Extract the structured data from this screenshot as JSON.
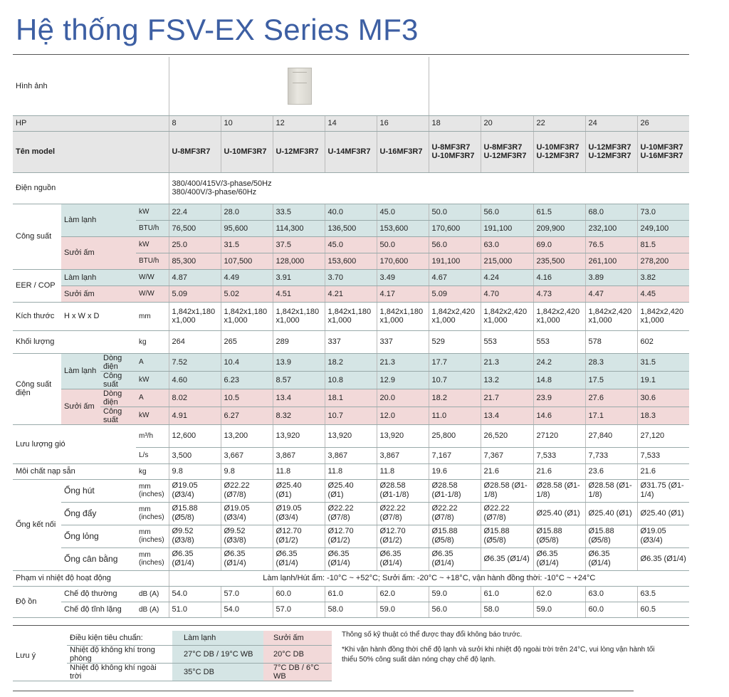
{
  "title": "Hệ thống FSV-EX Series MF3",
  "labels": {
    "image": "Hình ảnh",
    "hp": "HP",
    "model": "Tên model",
    "power_source": "Điện nguồn",
    "capacity": "Công suất",
    "cooling": "Làm lạnh",
    "heating": "Sưởi ấm",
    "eer_cop": "EER / COP",
    "dimensions": "Kích thước",
    "hwd": "H x W x D",
    "weight": "Khối lượng",
    "elec_power": "Công suất điện",
    "current": "Dòng điện",
    "power": "Công suất",
    "airflow": "Lưu lượng gió",
    "refrigerant": "Môi chất nạp sẵn",
    "piping": "Ống kết nối",
    "suction": "Ống hút",
    "discharge": "Ống đẩy",
    "liquid": "Ống lỏng",
    "balance": "Ống cân bằng",
    "temp_range": "Phạm vi nhiệt độ hoạt động",
    "noise": "Độ ồn",
    "normal_mode": "Chế độ thường",
    "quiet_mode": "Chế độ tĩnh lặng"
  },
  "units": {
    "kw": "kW",
    "btuh": "BTU/h",
    "ww": "W/W",
    "mm": "mm",
    "kg": "kg",
    "a": "A",
    "m3h": "m³/h",
    "ls": "L/s",
    "mm_inches": "mm (inches)",
    "dba": "dB (A)"
  },
  "hp": [
    "8",
    "10",
    "12",
    "14",
    "16",
    "18",
    "20",
    "22",
    "24",
    "26"
  ],
  "models": [
    [
      "U-8MF3R7"
    ],
    [
      "U-10MF3R7"
    ],
    [
      "U-12MF3R7"
    ],
    [
      "U-14MF3R7"
    ],
    [
      "U-16MF3R7"
    ],
    [
      "U-8MF3R7",
      "U-10MF3R7"
    ],
    [
      "U-8MF3R7",
      "U-12MF3R7"
    ],
    [
      "U-10MF3R7",
      "U-12MF3R7"
    ],
    [
      "U-12MF3R7",
      "U-12MF3R7"
    ],
    [
      "U-10MF3R7",
      "U-16MF3R7"
    ]
  ],
  "power_source": [
    "380/400/415V/3-phase/50Hz",
    "380/400V/3-phase/60Hz"
  ],
  "cool_kw": [
    "22.4",
    "28.0",
    "33.5",
    "40.0",
    "45.0",
    "50.0",
    "56.0",
    "61.5",
    "68.0",
    "73.0"
  ],
  "cool_btu": [
    "76,500",
    "95,600",
    "114,300",
    "136,500",
    "153,600",
    "170,600",
    "191,100",
    "209,900",
    "232,100",
    "249,100"
  ],
  "heat_kw": [
    "25.0",
    "31.5",
    "37.5",
    "45.0",
    "50.0",
    "56.0",
    "63.0",
    "69.0",
    "76.5",
    "81.5"
  ],
  "heat_btu": [
    "85,300",
    "107,500",
    "128,000",
    "153,600",
    "170,600",
    "191,100",
    "215,000",
    "235,500",
    "261,100",
    "278,200"
  ],
  "eer": [
    "4.87",
    "4.49",
    "3.91",
    "3.70",
    "3.49",
    "4.67",
    "4.24",
    "4.16",
    "3.89",
    "3.82"
  ],
  "cop": [
    "5.09",
    "5.02",
    "4.51",
    "4.21",
    "4.17",
    "5.09",
    "4.70",
    "4.73",
    "4.47",
    "4.45"
  ],
  "dims": [
    [
      "1,842x1,180",
      "x1,000"
    ],
    [
      "1,842x1,180",
      "x1,000"
    ],
    [
      "1,842x1,180",
      "x1,000"
    ],
    [
      "1,842x1,180",
      "x1,000"
    ],
    [
      "1,842x1,180",
      "x1,000"
    ],
    [
      "1,842x2,420",
      "x1,000"
    ],
    [
      "1,842x2,420",
      "x1,000"
    ],
    [
      "1,842x2,420",
      "x1,000"
    ],
    [
      "1,842x2,420",
      "x1,000"
    ],
    [
      "1,842x2,420",
      "x1,000"
    ]
  ],
  "weight": [
    "264",
    "265",
    "289",
    "337",
    "337",
    "529",
    "553",
    "553",
    "578",
    "602"
  ],
  "cool_current": [
    "7.52",
    "10.4",
    "13.9",
    "18.2",
    "21.3",
    "17.7",
    "21.3",
    "24.2",
    "28.3",
    "31.5"
  ],
  "cool_power": [
    "4.60",
    "6.23",
    "8.57",
    "10.8",
    "12.9",
    "10.7",
    "13.2",
    "14.8",
    "17.5",
    "19.1"
  ],
  "heat_current": [
    "8.02",
    "10.5",
    "13.4",
    "18.1",
    "20.0",
    "18.2",
    "21.7",
    "23.9",
    "27.6",
    "30.6"
  ],
  "heat_power": [
    "4.91",
    "6.27",
    "8.32",
    "10.7",
    "12.0",
    "11.0",
    "13.4",
    "14.6",
    "17.1",
    "18.3"
  ],
  "air_m3h": [
    "12,600",
    "13,200",
    "13,920",
    "13,920",
    "13,920",
    "25,800",
    "26,520",
    "27120",
    "27,840",
    "27,120"
  ],
  "air_ls": [
    "3,500",
    "3,667",
    "3,867",
    "3,867",
    "3,867",
    "7,167",
    "7,367",
    "7,533",
    "7,733",
    "7,533"
  ],
  "refrig": [
    "9.8",
    "9.8",
    "11.8",
    "11.8",
    "11.8",
    "19.6",
    "21.6",
    "21.6",
    "23.6",
    "21.6"
  ],
  "pipe_suction": [
    [
      "Ø19.05",
      "(Ø3/4)"
    ],
    [
      "Ø22.22",
      "(Ø7/8)"
    ],
    [
      "Ø25.40",
      "(Ø1)"
    ],
    [
      "Ø25.40",
      "(Ø1)"
    ],
    [
      "Ø28.58",
      "(Ø1-1/8)"
    ],
    [
      "Ø28.58",
      "(Ø1-1/8)"
    ],
    [
      "Ø28.58 (Ø1-",
      "1/8)"
    ],
    [
      "Ø28.58 (Ø1-",
      "1/8)"
    ],
    [
      "Ø28.58 (Ø1-",
      "1/8)"
    ],
    [
      "Ø31.75 (Ø1-",
      "1/4)"
    ]
  ],
  "pipe_discharge": [
    "Ø15.88 (Ø5/8)",
    "Ø19.05 (Ø3/4)",
    "Ø19.05 (Ø3/4)",
    "Ø22.22 (Ø7/8)",
    "Ø22.22 (Ø7/8)",
    "Ø22.22 (Ø7/8)",
    "Ø22.22 (Ø7/8)",
    "Ø25.40 (Ø1)",
    "Ø25.40 (Ø1)",
    "Ø25.40 (Ø1)"
  ],
  "pipe_liquid": [
    "Ø9.52 (Ø3/8)",
    "Ø9.52 (Ø3/8)",
    "Ø12.70 (Ø1/2)",
    "Ø12.70 (Ø1/2)",
    "Ø12.70 (Ø1/2)",
    "Ø15.88 (Ø5/8)",
    "Ø15.88 (Ø5/8)",
    "Ø15.88 (Ø5/8)",
    "Ø15.88 (Ø5/8)",
    "Ø19.05 (Ø3/4)"
  ],
  "pipe_balance": [
    "Ø6.35 (Ø1/4)",
    "Ø6.35 (Ø1/4)",
    "Ø6.35 (Ø1/4)",
    "Ø6.35 (Ø1/4)",
    "Ø6.35 (Ø1/4)",
    "Ø6.35 (Ø1/4)",
    "Ø6.35 (Ø1/4)",
    "Ø6.35 (Ø1/4)",
    "Ø6.35 (Ø1/4)",
    "Ø6.35 (Ø1/4)"
  ],
  "temp_range_text": "Làm lạnh/Hút ẩm: -10°C ~ +52°C; Sưởi ấm: -20°C ~ +18°C, vận hành đồng thời: -10°C ~ +24°C",
  "noise_normal": [
    "54.0",
    "57.0",
    "60.0",
    "61.0",
    "62.0",
    "59.0",
    "61.0",
    "62.0",
    "63.0",
    "63.5"
  ],
  "noise_quiet": [
    "51.0",
    "54.0",
    "57.0",
    "58.0",
    "59.0",
    "56.0",
    "58.0",
    "59.0",
    "60.0",
    "60.5"
  ],
  "notes": {
    "label": "Lưu ý",
    "std_cond": "Điều kiện tiêu chuẩn:",
    "cool_head": "Làm lạnh",
    "heat_head": "Sưởi ấm",
    "indoor": "Nhiệt độ không khí trong phòng",
    "indoor_cool": "27°C DB / 19°C WB",
    "indoor_heat": "20°C DB",
    "outdoor": "Nhiệt độ không khí ngoài trời",
    "outdoor_cool": "35°C DB",
    "outdoor_heat": "7°C DB / 6°C WB",
    "remark1": "Thông số kỹ thuật có thể được thay đổi không báo trước.",
    "remark2": "*Khi vận hành đồng thời chế độ lạnh và sưởi khi nhiệt độ ngoài trời trên 24°C, vui lòng vận hành tối thiểu 50% công suất dàn nóng chạy chế độ lạnh."
  }
}
